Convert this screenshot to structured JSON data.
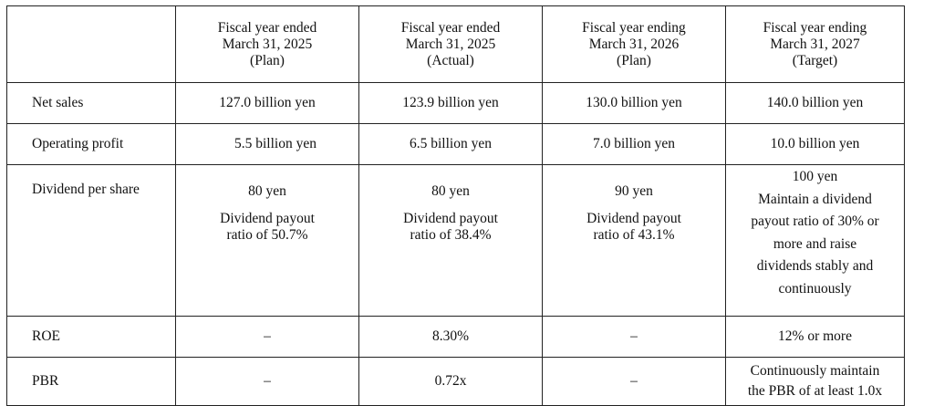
{
  "columns": [
    {
      "line1": "",
      "line2": "",
      "line3": ""
    },
    {
      "line1": "Fiscal year ended",
      "line2": "March 31, 2025",
      "line3": "(Plan)"
    },
    {
      "line1": "Fiscal year ended",
      "line2": "March 31, 2025",
      "line3": "(Actual)"
    },
    {
      "line1": "Fiscal year ending",
      "line2": "March 31, 2026",
      "line3": "(Plan)"
    },
    {
      "line1": "Fiscal year ending",
      "line2": "March 31, 2027",
      "line3": "(Target)"
    }
  ],
  "rows": {
    "net_sales": {
      "label": "Net sales",
      "values": [
        "127.0 billion yen",
        "123.9 billion yen",
        "130.0 billion yen",
        "140.0 billion yen"
      ]
    },
    "operating_profit": {
      "label": "Operating profit",
      "values": [
        "5.5 billion yen",
        "6.5 billion yen",
        "7.0 billion yen",
        "10.0 billion yen"
      ]
    },
    "dividend": {
      "label": "Dividend per share",
      "cells": [
        {
          "amount": "80 yen",
          "payout1": "Dividend payout",
          "payout2": "ratio of 50.7%"
        },
        {
          "amount": "80 yen",
          "payout1": "Dividend payout",
          "payout2": "ratio of 38.4%"
        },
        {
          "amount": "90 yen",
          "payout1": "Dividend payout",
          "payout2": "ratio of 43.1%"
        }
      ],
      "target_lines": [
        "100 yen",
        "Maintain a dividend",
        "payout ratio of 30% or",
        "more and raise",
        "dividends stably and",
        "continuously"
      ]
    },
    "roe": {
      "label": "ROE",
      "values": [
        "–",
        "8.30%",
        "–",
        "12% or more"
      ]
    },
    "pbr": {
      "label": "PBR",
      "values": [
        "–",
        "0.72x",
        "–"
      ],
      "target_lines": [
        "Continuously maintain",
        "the PBR of at least 1.0x"
      ]
    }
  }
}
